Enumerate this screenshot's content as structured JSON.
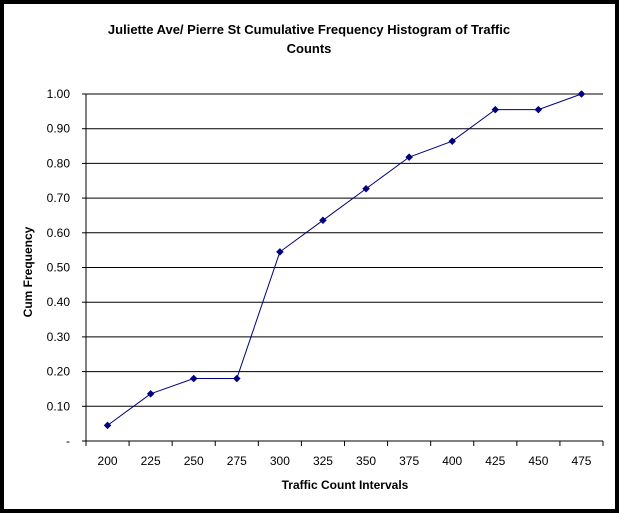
{
  "chart_data": {
    "type": "line",
    "title_lines": [
      "Juliette Ave/ Pierre St Cumulative Frequency Histogram of Traffic",
      "Counts"
    ],
    "xlabel": "Traffic Count Intervals",
    "ylabel": "Cum Frequency",
    "categories": [
      "200",
      "225",
      "250",
      "275",
      "300",
      "325",
      "350",
      "375",
      "400",
      "425",
      "450",
      "475"
    ],
    "values": [
      0.045,
      0.136,
      0.18,
      0.18,
      0.545,
      0.636,
      0.727,
      0.818,
      0.864,
      0.955,
      0.955,
      1.0
    ],
    "y_ticks": [
      {
        "value": 0,
        "label": "-"
      },
      {
        "value": 0.1,
        "label": "0.10"
      },
      {
        "value": 0.2,
        "label": "0.20"
      },
      {
        "value": 0.3,
        "label": "0.30"
      },
      {
        "value": 0.4,
        "label": "0.40"
      },
      {
        "value": 0.5,
        "label": "0.50"
      },
      {
        "value": 0.6,
        "label": "0.60"
      },
      {
        "value": 0.7,
        "label": "0.70"
      },
      {
        "value": 0.8,
        "label": "0.80"
      },
      {
        "value": 0.9,
        "label": "0.90"
      },
      {
        "value": 1.0,
        "label": "1.00"
      }
    ],
    "ylim": [
      0,
      1
    ],
    "grid": true,
    "legend": "none",
    "line_color": "#000080",
    "marker_color": "#000080",
    "gridline_color": "#000000"
  }
}
